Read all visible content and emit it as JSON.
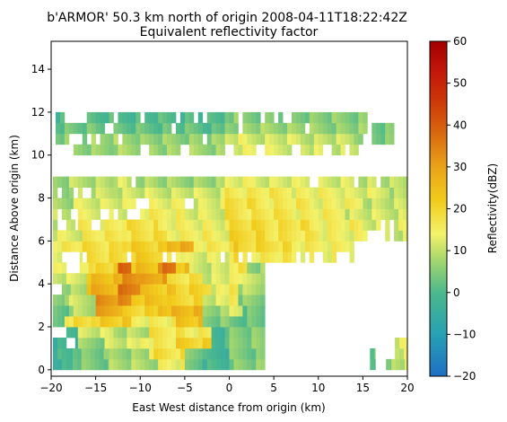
{
  "chart_data": {
    "type": "heatmap",
    "title": "b'ARMOR' 50.3 km north of origin 2008-04-11T18:22:42Z",
    "subtitle": "Equivalent reflectivity factor",
    "xlabel": "East West distance from origin (km)",
    "ylabel": "Distance Above origin (km)",
    "xlim": [
      -20,
      20
    ],
    "ylim": [
      -0.3,
      15.3
    ],
    "xticks": [
      -20,
      -15,
      -10,
      -5,
      0,
      5,
      10,
      15,
      20
    ],
    "yticks": [
      0,
      2,
      4,
      6,
      8,
      10,
      12,
      14
    ],
    "grid": false,
    "colorbar": {
      "label": "Reflectivity(dBZ)",
      "min": -20,
      "max": 60,
      "ticks": [
        -20,
        -10,
        0,
        10,
        20,
        30,
        40,
        50,
        60
      ],
      "colormap": "pyart_HomeyerRainbow",
      "stops": [
        {
          "v": -20,
          "c": "#1f6fc4"
        },
        {
          "v": -10,
          "c": "#27a1b3"
        },
        {
          "v": 0,
          "c": "#4cb88c"
        },
        {
          "v": 8,
          "c": "#a8d86d"
        },
        {
          "v": 14,
          "c": "#f4f26a"
        },
        {
          "v": 22,
          "c": "#f2cc1d"
        },
        {
          "v": 30,
          "c": "#e9a218"
        },
        {
          "v": 38,
          "c": "#d9680e"
        },
        {
          "v": 46,
          "c": "#cd3608"
        },
        {
          "v": 53,
          "c": "#c2160a"
        },
        {
          "v": 60,
          "c": "#a20000"
        }
      ]
    },
    "levels_km": [
      0.25,
      0.75,
      1.25,
      1.75,
      2.25,
      2.75,
      3.25,
      3.75,
      4.25,
      4.75,
      5.25,
      5.75,
      6.25,
      6.75,
      7.25,
      7.75,
      8.25,
      8.75,
      10.25,
      10.75,
      11.25,
      11.75
    ],
    "rows": [
      {
        "z": 0.25,
        "segments": [
          [
            -19.8,
            -17.6,
            4
          ],
          [
            -17.6,
            -13.5,
            10
          ],
          [
            -13.5,
            -8.0,
            14
          ],
          [
            -8.0,
            -5.0,
            20
          ],
          [
            -5.0,
            -3.0,
            9
          ],
          [
            -3.0,
            4.0,
            5
          ],
          [
            15.8,
            16.4,
            3
          ],
          [
            17.6,
            18.2,
            3
          ],
          [
            18.2,
            20.0,
            10
          ]
        ]
      },
      {
        "z": 0.75,
        "segments": [
          [
            -19.8,
            -17.6,
            4
          ],
          [
            -17.6,
            -13.5,
            10
          ],
          [
            -13.5,
            -9.0,
            13
          ],
          [
            -9.0,
            -5.0,
            24
          ],
          [
            -5.0,
            -3.0,
            11
          ],
          [
            -3.0,
            4.0,
            4
          ],
          [
            15.8,
            16.4,
            3
          ],
          [
            18.6,
            20.0,
            12
          ]
        ]
      },
      {
        "z": 1.25,
        "segments": [
          [
            -19.8,
            -17.0,
            3
          ],
          [
            -17.0,
            -14.0,
            12
          ],
          [
            -14.0,
            -10.0,
            17
          ],
          [
            -10.0,
            -6.0,
            22
          ],
          [
            -6.0,
            -2.0,
            27
          ],
          [
            -2.0,
            4.0,
            5
          ],
          [
            18.6,
            20.0,
            12
          ]
        ]
      },
      {
        "z": 1.75,
        "segments": [
          [
            -19.8,
            -17.0,
            6
          ],
          [
            -17.0,
            -13.0,
            17
          ],
          [
            -13.0,
            -9.0,
            15
          ],
          [
            -9.0,
            -5.0,
            23
          ],
          [
            -5.0,
            -2.0,
            21
          ],
          [
            -2.0,
            4.0,
            5
          ]
        ]
      },
      {
        "z": 2.25,
        "segments": [
          [
            -19.8,
            -18.5,
            7
          ],
          [
            -18.5,
            -15.5,
            24
          ],
          [
            -15.5,
            -11.0,
            28
          ],
          [
            -11.0,
            -6.0,
            21
          ],
          [
            -6.0,
            -3.0,
            30
          ],
          [
            -3.0,
            0.0,
            10
          ],
          [
            0.0,
            4.0,
            2
          ]
        ]
      },
      {
        "z": 2.75,
        "segments": [
          [
            -19.8,
            -18.0,
            8
          ],
          [
            -18.0,
            -15.0,
            15
          ],
          [
            -15.0,
            -12.0,
            35
          ],
          [
            -12.0,
            -8.0,
            26
          ],
          [
            -8.0,
            -3.0,
            32
          ],
          [
            -3.0,
            1.5,
            13
          ],
          [
            1.5,
            4.0,
            3
          ]
        ]
      },
      {
        "z": 3.25,
        "segments": [
          [
            -19.8,
            -18.5,
            11
          ],
          [
            -18.5,
            -15.0,
            16
          ],
          [
            -15.0,
            -11.0,
            38
          ],
          [
            -11.0,
            -7.0,
            30
          ],
          [
            -7.0,
            -3.0,
            26
          ],
          [
            -3.0,
            1.0,
            17
          ],
          [
            1.0,
            4.0,
            5
          ]
        ]
      },
      {
        "z": 3.75,
        "segments": [
          [
            -19.8,
            -16.0,
            14
          ],
          [
            -16.0,
            -12.5,
            33
          ],
          [
            -12.5,
            -10.0,
            42
          ],
          [
            -10.0,
            -6.0,
            29
          ],
          [
            -6.0,
            -2.0,
            26
          ],
          [
            -2.0,
            1.0,
            19
          ],
          [
            1.0,
            4.0,
            9
          ]
        ]
      },
      {
        "z": 4.25,
        "segments": [
          [
            -19.8,
            -16.0,
            17
          ],
          [
            -16.0,
            -12.0,
            31
          ],
          [
            -12.0,
            -10.0,
            40
          ],
          [
            -10.0,
            -7.0,
            35
          ],
          [
            -7.0,
            -3.0,
            24
          ],
          [
            -3.0,
            1.0,
            17
          ],
          [
            1.0,
            4.0,
            11
          ]
        ]
      },
      {
        "z": 4.75,
        "segments": [
          [
            -19.8,
            -15.0,
            22
          ],
          [
            -15.0,
            -12.5,
            27
          ],
          [
            -12.5,
            -11.0,
            45
          ],
          [
            -11.0,
            -8.0,
            30
          ],
          [
            -8.0,
            -6.0,
            42
          ],
          [
            -6.0,
            -4.5,
            30
          ],
          [
            -4.5,
            2.0,
            17
          ],
          [
            2.0,
            4.0,
            6
          ]
        ]
      },
      {
        "z": 5.25,
        "segments": [
          [
            -19.8,
            -16.5,
            20
          ],
          [
            -16.5,
            -11.5,
            24
          ],
          [
            -11.5,
            -8.0,
            28
          ],
          [
            -8.0,
            -5.0,
            22
          ],
          [
            -5.0,
            1.0,
            18
          ],
          [
            1.0,
            7.0,
            16
          ],
          [
            7.0,
            14.0,
            14
          ]
        ]
      },
      {
        "z": 5.75,
        "segments": [
          [
            -19.8,
            -17.0,
            22
          ],
          [
            -17.0,
            -12.0,
            24
          ],
          [
            -12.0,
            -7.0,
            27
          ],
          [
            -7.0,
            -4.0,
            33
          ],
          [
            -4.0,
            1.0,
            22
          ],
          [
            1.0,
            7.0,
            19
          ],
          [
            7.0,
            14.0,
            15
          ]
        ]
      },
      {
        "z": 6.25,
        "segments": [
          [
            -19.8,
            -16.5,
            18
          ],
          [
            -16.5,
            -12.0,
            22
          ],
          [
            -12.0,
            -7.0,
            24
          ],
          [
            -7.0,
            -2.0,
            21
          ],
          [
            -2.0,
            4.0,
            20
          ],
          [
            4.0,
            10.0,
            17
          ],
          [
            10.0,
            16.0,
            14
          ],
          [
            16.0,
            20.0,
            11
          ]
        ]
      },
      {
        "z": 6.75,
        "segments": [
          [
            -19.8,
            -17.0,
            17
          ],
          [
            -17.0,
            -12.0,
            21
          ],
          [
            -12.0,
            -8.0,
            24
          ],
          [
            -8.0,
            -2.0,
            20
          ],
          [
            -2.0,
            4.0,
            19
          ],
          [
            4.0,
            9.0,
            18
          ],
          [
            9.0,
            15.0,
            15
          ],
          [
            15.0,
            20.0,
            12
          ]
        ]
      },
      {
        "z": 7.25,
        "segments": [
          [
            -19.8,
            -17.0,
            15
          ],
          [
            -17.0,
            -11.0,
            19
          ],
          [
            -11.0,
            -5.0,
            21
          ],
          [
            -5.0,
            1.0,
            18
          ],
          [
            1.0,
            7.0,
            17
          ],
          [
            7.0,
            13.0,
            15
          ],
          [
            13.0,
            20.0,
            11
          ]
        ]
      },
      {
        "z": 7.75,
        "segments": [
          [
            -19.8,
            -17.5,
            13
          ],
          [
            -17.5,
            -11.0,
            18
          ],
          [
            -11.0,
            -4.0,
            19
          ],
          [
            -4.0,
            3.0,
            18
          ],
          [
            3.0,
            9.0,
            16
          ],
          [
            9.0,
            15.0,
            14
          ],
          [
            15.0,
            20.0,
            10
          ]
        ]
      },
      {
        "z": 8.25,
        "segments": [
          [
            -19.8,
            -18.0,
            12
          ],
          [
            -18.0,
            -13.0,
            16
          ],
          [
            -13.0,
            -7.0,
            17
          ],
          [
            -7.0,
            0.0,
            17
          ],
          [
            0.0,
            7.0,
            16
          ],
          [
            7.0,
            13.0,
            14
          ],
          [
            13.0,
            18.0,
            12
          ],
          [
            18.0,
            20.0,
            9
          ]
        ]
      },
      {
        "z": 8.75,
        "segments": [
          [
            -19.8,
            -18.0,
            12
          ],
          [
            -18.0,
            -13.0,
            15
          ],
          [
            -13.0,
            -11.5,
            17
          ],
          [
            -11.5,
            -11.0,
            15
          ],
          [
            -10.5,
            -8.0,
            14
          ],
          [
            -8.0,
            -2.0,
            13
          ],
          [
            -2.0,
            3.0,
            13
          ],
          [
            3.0,
            9.0,
            12
          ],
          [
            10.0,
            14.0,
            11
          ],
          [
            14.5,
            16.5,
            10
          ],
          [
            17.0,
            20.0,
            9
          ]
        ]
      },
      {
        "z": 10.25,
        "segments": [
          [
            -17.5,
            -13.0,
            12
          ],
          [
            -13.0,
            -8.0,
            14
          ],
          [
            -8.0,
            -2.0,
            13
          ],
          [
            -2.0,
            4.0,
            13
          ],
          [
            4.0,
            9.0,
            12
          ],
          [
            9.0,
            14.5,
            11
          ]
        ]
      },
      {
        "z": 10.75,
        "segments": [
          [
            -19.5,
            -16.0,
            11
          ],
          [
            -16.0,
            -10.0,
            13
          ],
          [
            -10.0,
            -4.0,
            12
          ],
          [
            -4.0,
            2.0,
            12
          ],
          [
            2.0,
            8.0,
            11
          ],
          [
            8.0,
            14.0,
            10
          ],
          [
            14.0,
            15.5,
            8
          ],
          [
            16.0,
            18.5,
            4
          ]
        ]
      },
      {
        "z": 11.25,
        "segments": [
          [
            -19.5,
            -15.0,
            9
          ],
          [
            -15.0,
            -9.0,
            8
          ],
          [
            -9.0,
            -3.0,
            8
          ],
          [
            -3.0,
            3.0,
            7
          ],
          [
            3.0,
            9.0,
            7
          ],
          [
            9.0,
            15.5,
            6
          ],
          [
            16.0,
            18.5,
            4
          ]
        ]
      },
      {
        "z": 11.75,
        "segments": [
          [
            -19.5,
            -16.0,
            5
          ],
          [
            -16.0,
            -10.0,
            6
          ],
          [
            -10.0,
            -4.0,
            6
          ],
          [
            -4.0,
            2.0,
            5
          ],
          [
            2.0,
            8.0,
            5
          ],
          [
            8.0,
            15.5,
            5
          ]
        ]
      }
    ],
    "gaps": [
      {
        "z": 11.75,
        "x": [
          -18.0,
          -17.0,
          -16.2,
          -12.8,
          -9.8,
          -5.8,
          -3.9,
          -2.8,
          1.4,
          3.6,
          5.1,
          6.5
        ]
      },
      {
        "z": 11.25,
        "x": [
          -13.5,
          -6.4,
          1.2,
          8.7
        ]
      },
      {
        "z": 10.75,
        "x": [
          -17.5,
          -16.6,
          -15.9,
          -14.7,
          -12.3,
          -2.8,
          15.5
        ]
      },
      {
        "z": 10.25,
        "x": [
          -9.5,
          -5.0,
          0.0,
          3.5,
          7.5,
          11.0,
          13.2
        ]
      },
      {
        "z": 8.25,
        "x": [
          -19.0,
          -17.4,
          -16.0
        ]
      },
      {
        "z": 7.75,
        "x": [
          -10.0,
          -9.4,
          -4.5
        ]
      },
      {
        "z": 7.25,
        "x": [
          -19.2,
          -17.3,
          -14.4,
          -13.6,
          -12.8,
          -11.0,
          -10.2
        ]
      },
      {
        "z": 6.75,
        "x": [
          -18.8,
          -17.1,
          -15.3,
          -14.8,
          17.4,
          18.2
        ]
      },
      {
        "z": 6.25,
        "x": [
          15.7,
          16.5,
          17.3,
          18.1
        ]
      },
      {
        "z": 5.25,
        "x": [
          -18.6,
          -17.8,
          -17.0,
          -16.2,
          -11.3,
          -7.1,
          -6.3,
          -0.8,
          1.3,
          2.2,
          7.8,
          8.6,
          10.0,
          12.2,
          13.0
        ]
      },
      {
        "z": 4.75,
        "x": [
          -17.8,
          -16.9
        ]
      },
      {
        "z": 3.75,
        "x": [
          -19.8,
          -19.2
        ]
      },
      {
        "z": 1.75,
        "x": [
          -19.6,
          -18.8
        ]
      },
      {
        "z": 1.25,
        "x": [
          -17.8
        ]
      },
      {
        "z": 0.75,
        "x": [
          18.0
        ]
      },
      {
        "z": 0.25,
        "x": [
          17.0,
          17.4
        ]
      }
    ]
  }
}
